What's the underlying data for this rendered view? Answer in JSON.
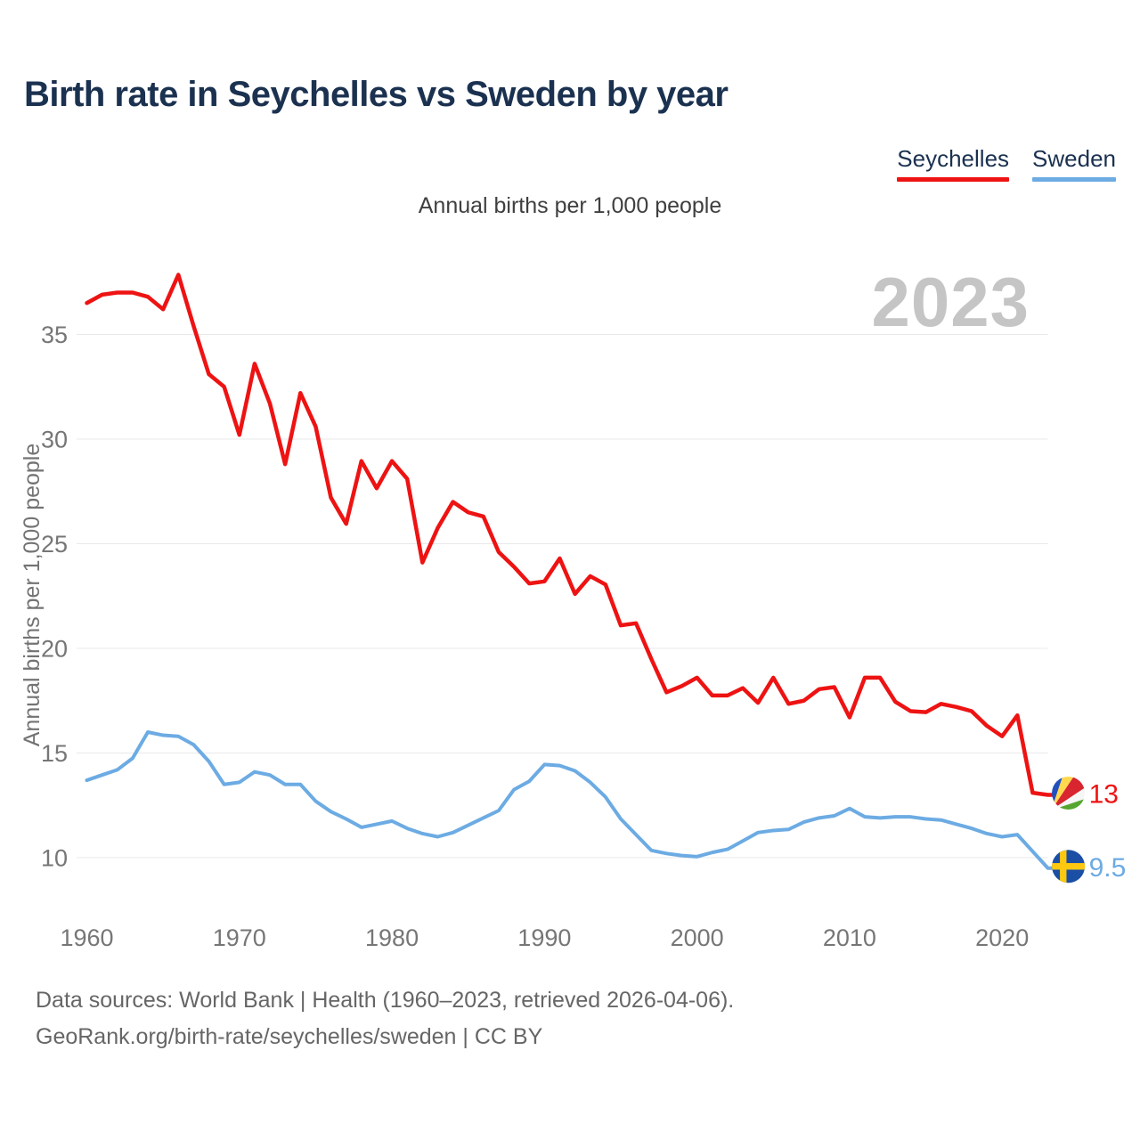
{
  "page": {
    "title": "Birth rate in Seychelles vs Sweden by year",
    "subtitle": "Annual births per 1,000 people"
  },
  "legend": [
    {
      "label": "Seychelles",
      "color": "#ee1313"
    },
    {
      "label": "Sweden",
      "color": "#6cabe3"
    }
  ],
  "footer": {
    "line1": "Data sources: World Bank | Health (1960–2023, retrieved 2026-04-06).",
    "line2": "GeoRank.org/birth-rate/seychelles/sweden | CC BY"
  },
  "chart_data": {
    "type": "line",
    "title": "Birth rate in Seychelles vs Sweden by year",
    "xlabel": "",
    "ylabel": "Annual births per 1,000 people",
    "watermark": "2023",
    "grid": true,
    "legend_position": "top-right",
    "ylim": [
      8.5,
      38.5
    ],
    "y_ticks": [
      35,
      30,
      25,
      20,
      15,
      10
    ],
    "x_ticks": [
      1960,
      1970,
      1980,
      1990,
      2000,
      2010,
      2020
    ],
    "x": [
      1960,
      1961,
      1962,
      1963,
      1964,
      1965,
      1966,
      1967,
      1968,
      1969,
      1970,
      1971,
      1972,
      1973,
      1974,
      1975,
      1976,
      1977,
      1978,
      1979,
      1980,
      1981,
      1982,
      1983,
      1984,
      1985,
      1986,
      1987,
      1988,
      1989,
      1990,
      1991,
      1992,
      1993,
      1994,
      1995,
      1996,
      1997,
      1998,
      1999,
      2000,
      2001,
      2002,
      2003,
      2004,
      2005,
      2006,
      2007,
      2008,
      2009,
      2010,
      2011,
      2012,
      2013,
      2014,
      2015,
      2016,
      2017,
      2018,
      2019,
      2020,
      2021,
      2022,
      2023
    ],
    "series": [
      {
        "name": "Seychelles",
        "color": "#ee1313",
        "end_label": "13",
        "flag": "seychelles",
        "values": [
          36.5,
          36.9,
          37.0,
          37.0,
          36.8,
          36.2,
          37.85,
          35.4,
          33.1,
          32.5,
          30.2,
          33.6,
          31.7,
          28.8,
          32.2,
          30.6,
          27.2,
          25.95,
          28.95,
          27.65,
          28.95,
          28.1,
          24.1,
          25.75,
          27.0,
          26.5,
          26.3,
          24.6,
          23.9,
          23.1,
          23.2,
          24.3,
          22.6,
          23.45,
          23.05,
          21.1,
          21.2,
          19.5,
          17.9,
          18.2,
          18.6,
          17.75,
          17.75,
          18.1,
          17.4,
          18.6,
          17.35,
          17.5,
          18.05,
          18.15,
          16.7,
          18.6,
          18.6,
          17.45,
          17.0,
          16.95,
          17.35,
          17.2,
          17.0,
          16.3,
          15.8,
          16.8,
          13.1,
          13.0
        ]
      },
      {
        "name": "Sweden",
        "color": "#6cabe3",
        "end_label": "9.5",
        "flag": "sweden",
        "values": [
          13.7,
          13.95,
          14.2,
          14.75,
          16.0,
          15.85,
          15.8,
          15.4,
          14.6,
          13.5,
          13.6,
          14.1,
          13.95,
          13.5,
          13.5,
          12.7,
          12.2,
          11.85,
          11.45,
          11.6,
          11.75,
          11.4,
          11.15,
          11.0,
          11.2,
          11.55,
          11.9,
          12.25,
          13.25,
          13.65,
          14.45,
          14.4,
          14.15,
          13.6,
          12.9,
          11.85,
          11.1,
          10.35,
          10.2,
          10.1,
          10.05,
          10.25,
          10.4,
          10.8,
          11.2,
          11.3,
          11.35,
          11.7,
          11.9,
          12.0,
          12.35,
          11.95,
          11.9,
          11.95,
          11.95,
          11.85,
          11.8,
          11.6,
          11.4,
          11.15,
          11.0,
          11.1,
          10.3,
          9.5
        ]
      }
    ]
  }
}
